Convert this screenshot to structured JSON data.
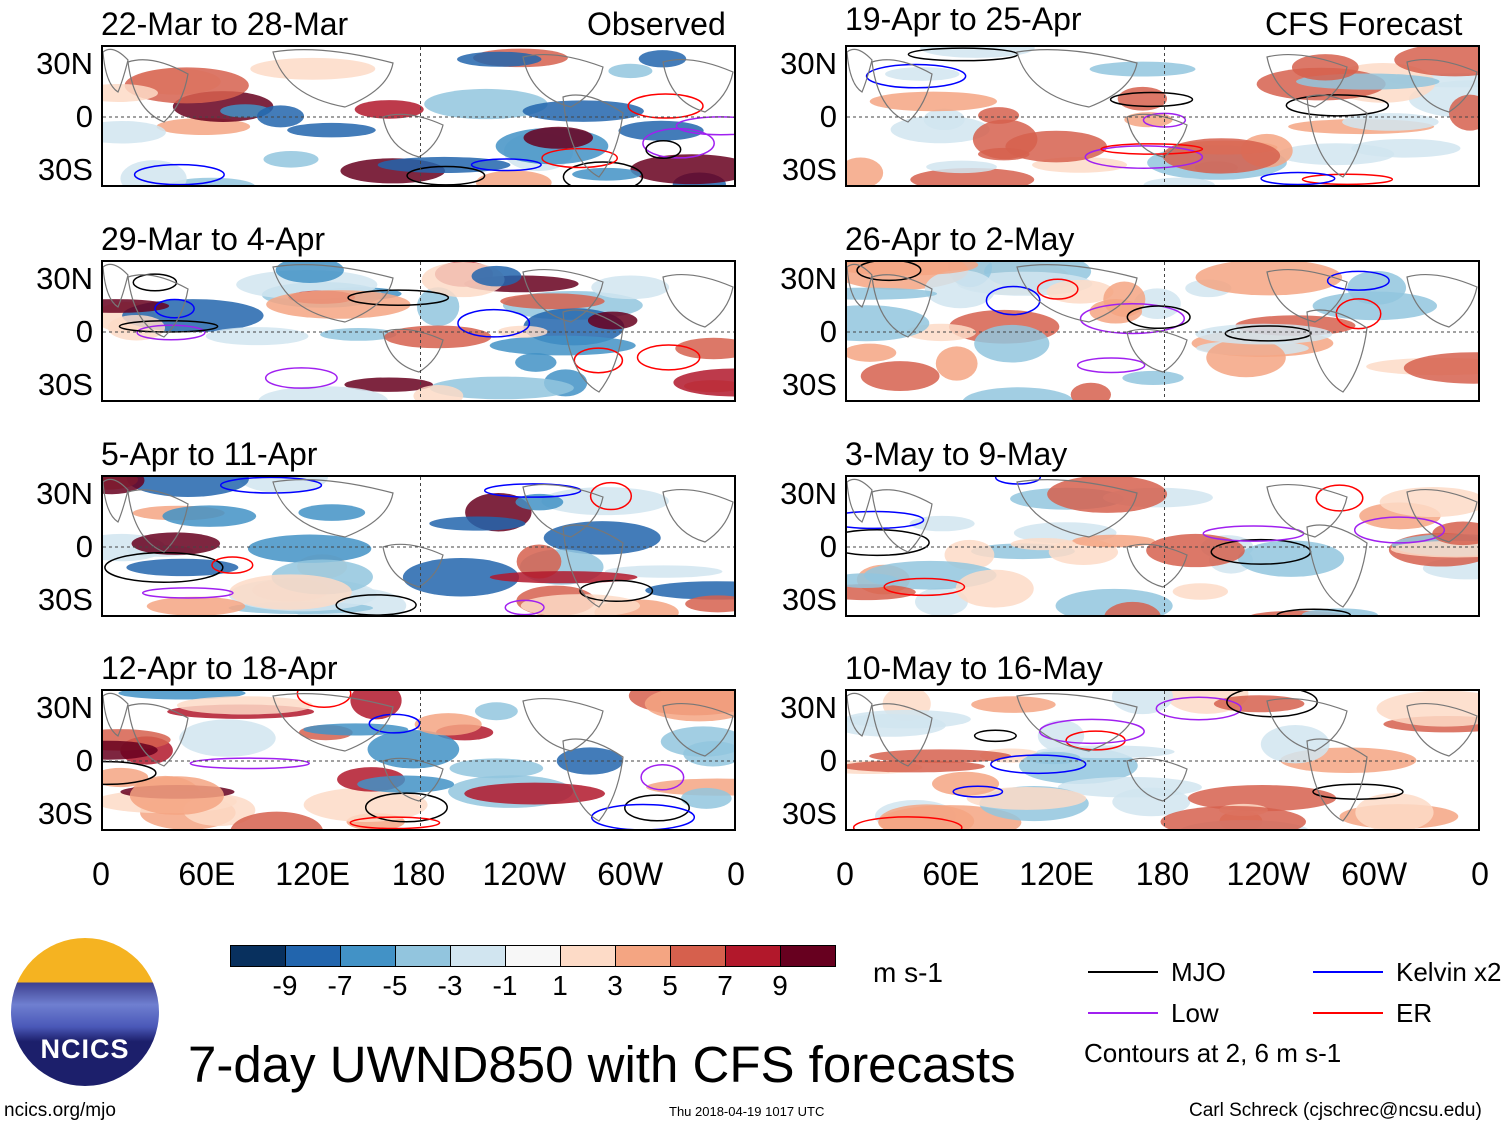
{
  "chart_data": {
    "type": "heatmap",
    "title": "7-day UWND850 with CFS forecasts",
    "units": "m s-1",
    "columns": [
      {
        "header": "Observed",
        "panels": [
          "22-Mar to 28-Mar",
          "29-Mar to 4-Apr",
          "5-Apr to 11-Apr",
          "12-Apr to 18-Apr"
        ]
      },
      {
        "header": "CFS Forecast",
        "panels": [
          "19-Apr to 25-Apr",
          "26-Apr to 2-May",
          "3-May to 9-May",
          "10-May to 16-May"
        ]
      }
    ],
    "y_ticks": [
      "30N",
      "0",
      "30S"
    ],
    "x_ticks": [
      "0",
      "60E",
      "120E",
      "180",
      "120W",
      "60W",
      "0"
    ],
    "colorbar": {
      "labels": [
        "-9",
        "-7",
        "-5",
        "-3",
        "-1",
        "1",
        "3",
        "5",
        "7",
        "9"
      ],
      "colors": [
        "#08305e",
        "#2265ad",
        "#4292c6",
        "#92c5de",
        "#d1e5f0",
        "#f7f7f7",
        "#fddbc7",
        "#f4a582",
        "#d6604d",
        "#b2182b",
        "#67001f"
      ]
    },
    "legend": [
      {
        "label": "MJO",
        "color": "#000000"
      },
      {
        "label": "Kelvin x2",
        "color": "#0000ff"
      },
      {
        "label": "Low",
        "color": "#a020f0"
      },
      {
        "label": "ER",
        "color": "#ff0000"
      }
    ],
    "contour_note": "Contours at 2, 6 m s-1"
  },
  "footer": {
    "left": "ncics.org/mjo",
    "center": "Thu 2018-04-19 1017 UTC",
    "right": "Carl Schreck (cjschrec@ncsu.edu)",
    "logo_text": "NCICS"
  }
}
